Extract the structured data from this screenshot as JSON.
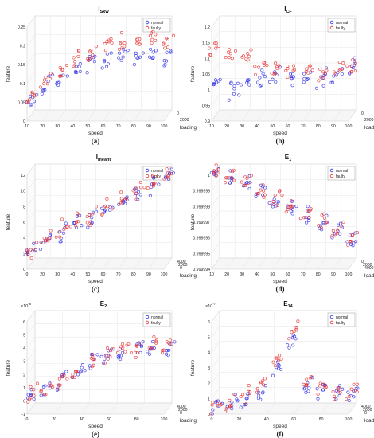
{
  "chart_data": [
    {
      "id": "a",
      "type": "scatter",
      "panel_label": "(a)",
      "title": "I",
      "title_sub": "Skw",
      "ylabel": "feature",
      "xlabel": "speed",
      "zlabel": "loading",
      "x_ticks": [
        "10",
        "20",
        "30",
        "40",
        "50",
        "60",
        "70",
        "80",
        "90",
        "100"
      ],
      "y_ticks": [
        "0",
        "0.05",
        "0.1",
        "0.15",
        "0.2",
        "0.25"
      ],
      "z_ticks": [
        "0",
        "2000"
      ],
      "ylim": [
        0,
        0.25
      ],
      "legend": [
        "normal",
        "faulty"
      ],
      "legend_position": "top-right",
      "colors": [
        "#3333e6",
        "#e63333"
      ],
      "series": [
        {
          "name": "normal",
          "x": [
            10,
            20,
            30,
            40,
            50,
            60,
            70,
            80,
            90,
            100
          ],
          "values": [
            0.04,
            0.08,
            0.1,
            0.12,
            0.14,
            0.15,
            0.16,
            0.15,
            0.16,
            0.16
          ]
        },
        {
          "name": "faulty",
          "x": [
            10,
            20,
            30,
            40,
            50,
            60,
            70,
            80,
            90,
            100
          ],
          "values": [
            0.05,
            0.09,
            0.12,
            0.15,
            0.17,
            0.19,
            0.2,
            0.19,
            0.21,
            0.2
          ]
        }
      ]
    },
    {
      "id": "b",
      "type": "scatter",
      "panel_label": "(b)",
      "title": "I",
      "title_sub": "CF",
      "ylabel": "feature",
      "xlabel": "speed",
      "zlabel": "loading",
      "x_ticks": [
        "10",
        "20",
        "30",
        "40",
        "50",
        "60",
        "70",
        "80",
        "90",
        "100"
      ],
      "y_ticks": [
        "0.9",
        "0.95",
        "1",
        "1.05",
        "1.1",
        "1.15",
        "1.2"
      ],
      "z_ticks": [
        "0",
        "2000"
      ],
      "ylim": [
        0.9,
        1.2
      ],
      "legend": [
        "normal",
        "faulty"
      ],
      "legend_position": "top-right",
      "colors": [
        "#3333e6",
        "#e63333"
      ],
      "series": [
        {
          "name": "normal",
          "x": [
            10,
            20,
            30,
            40,
            50,
            60,
            70,
            80,
            90,
            100
          ],
          "values": [
            1.0,
            0.98,
            1.0,
            1.02,
            1.03,
            1.02,
            1.03,
            1.02,
            1.03,
            1.05
          ]
        },
        {
          "name": "faulty",
          "x": [
            10,
            20,
            30,
            40,
            50,
            60,
            70,
            80,
            90,
            100
          ],
          "values": [
            1.12,
            1.1,
            1.08,
            1.06,
            1.05,
            1.05,
            1.04,
            1.04,
            1.04,
            1.06
          ]
        }
      ]
    },
    {
      "id": "c",
      "type": "scatter",
      "panel_label": "(c)",
      "title": "I",
      "title_sub": "meant",
      "ylabel": "feature",
      "xlabel": "speed",
      "zlabel": "loading",
      "x_ticks": [
        "0",
        "20",
        "30",
        "40",
        "50",
        "60",
        "70",
        "80",
        "90",
        "100"
      ],
      "y_ticks": [
        "0",
        "2",
        "4",
        "6",
        "8",
        "10",
        "12"
      ],
      "z_ticks": [
        "4000",
        "2000",
        "0"
      ],
      "ylim": [
        0,
        12
      ],
      "legend": [
        "normal",
        "faulty"
      ],
      "legend_position": "top-right",
      "colors": [
        "#3333e6",
        "#e63333"
      ],
      "series": [
        {
          "name": "normal",
          "x": [
            10,
            20,
            30,
            40,
            50,
            60,
            70,
            80,
            90,
            100
          ],
          "values": [
            1.5,
            3,
            4,
            5,
            6,
            7,
            8,
            9,
            10,
            11
          ]
        },
        {
          "name": "faulty",
          "x": [
            10,
            20,
            30,
            40,
            50,
            60,
            70,
            80,
            90,
            100
          ],
          "values": [
            1.7,
            3.2,
            4.3,
            5.3,
            6.3,
            7.3,
            8.3,
            9.3,
            10.3,
            11.2
          ]
        }
      ]
    },
    {
      "id": "d",
      "type": "scatter",
      "panel_label": "(d)",
      "title": "E",
      "title_sub": "1",
      "ylabel": "feature",
      "xlabel": "speed",
      "zlabel": "loading",
      "x_ticks": [
        "10",
        "20",
        "30",
        "40",
        "50",
        "60",
        "70",
        "80",
        "90",
        "100"
      ],
      "y_ticks": [
        "0.999994",
        "0.999995",
        "0.999996",
        "0.999997",
        "0.999998",
        "0.999999",
        "1"
      ],
      "z_ticks": [
        "0",
        "2000",
        "4000"
      ],
      "ylim": [
        0.999994,
        1
      ],
      "legend": [
        "normal",
        "faulty"
      ],
      "legend_position": "top-right",
      "colors": [
        "#3333e6",
        "#e63333"
      ],
      "series": [
        {
          "name": "normal",
          "x": [
            10,
            20,
            30,
            40,
            50,
            60,
            70,
            80,
            90,
            100
          ],
          "values": [
            0.9999999,
            0.9999995,
            0.999999,
            0.9999985,
            0.999998,
            0.9999975,
            0.999997,
            0.9999965,
            0.999996,
            0.9999955
          ]
        },
        {
          "name": "faulty",
          "x": [
            10,
            20,
            30,
            40,
            50,
            60,
            70,
            80,
            90,
            100
          ],
          "values": [
            0.9999999,
            0.9999996,
            0.9999991,
            0.9999986,
            0.9999981,
            0.9999976,
            0.9999971,
            0.9999966,
            0.9999961,
            0.9999956
          ]
        }
      ]
    },
    {
      "id": "e",
      "type": "scatter",
      "panel_label": "(e)",
      "title": "E",
      "title_sub": "2",
      "exponent": "×10",
      "exponent_power": "-6",
      "ylabel": "feature",
      "xlabel": "speed",
      "zlabel": "loading",
      "x_ticks": [
        "0",
        "20",
        "40",
        "60",
        "80",
        "100"
      ],
      "y_ticks": [
        "-1",
        "0",
        "1",
        "2",
        "3",
        "4",
        "5",
        "6"
      ],
      "z_ticks": [
        "4000",
        "2000",
        "0"
      ],
      "ylim": [
        -1,
        6
      ],
      "legend": [
        "normal",
        "faulty"
      ],
      "legend_position": "top-right",
      "colors": [
        "#3333e6",
        "#e63333"
      ],
      "series": [
        {
          "name": "normal",
          "x": [
            10,
            20,
            30,
            40,
            50,
            60,
            70,
            80,
            90,
            100
          ],
          "values": [
            0,
            0.3,
            1,
            1.8,
            2.5,
            3,
            3.3,
            3.5,
            3.6,
            3.7
          ]
        },
        {
          "name": "faulty",
          "x": [
            10,
            20,
            30,
            40,
            50,
            60,
            70,
            80,
            90,
            100
          ],
          "values": [
            0.1,
            0.4,
            1.1,
            1.9,
            2.6,
            3.1,
            3.4,
            3.6,
            3.7,
            3.8
          ]
        }
      ]
    },
    {
      "id": "f",
      "type": "scatter",
      "panel_label": "(f)",
      "title": "E",
      "title_sub": "14",
      "exponent": "×10",
      "exponent_power": "-7",
      "ylabel": "feature",
      "xlabel": "speed",
      "zlabel": "loading",
      "x_ticks": [
        "0",
        "20",
        "40",
        "60",
        "80",
        "100"
      ],
      "y_ticks": [
        "0",
        "1",
        "2",
        "3",
        "4",
        "5",
        "6"
      ],
      "z_ticks": [
        "4000",
        "2000",
        "0"
      ],
      "ylim": [
        0,
        6
      ],
      "legend": [
        "normal",
        "faulty"
      ],
      "legend_position": "top-right",
      "colors": [
        "#3333e6",
        "#e63333"
      ],
      "series": [
        {
          "name": "normal",
          "x": [
            10,
            20,
            30,
            40,
            50,
            60,
            70,
            80,
            90,
            100
          ],
          "values": [
            0.1,
            0.3,
            0.6,
            1.2,
            2.5,
            4.5,
            1.5,
            1.2,
            1.0,
            1.0
          ]
        },
        {
          "name": "faulty",
          "x": [
            10,
            20,
            30,
            40,
            50,
            60,
            70,
            80,
            90,
            100
          ],
          "values": [
            0.1,
            0.4,
            0.8,
            1.5,
            3,
            5,
            1.8,
            1.4,
            1.1,
            1.1
          ]
        }
      ]
    }
  ]
}
